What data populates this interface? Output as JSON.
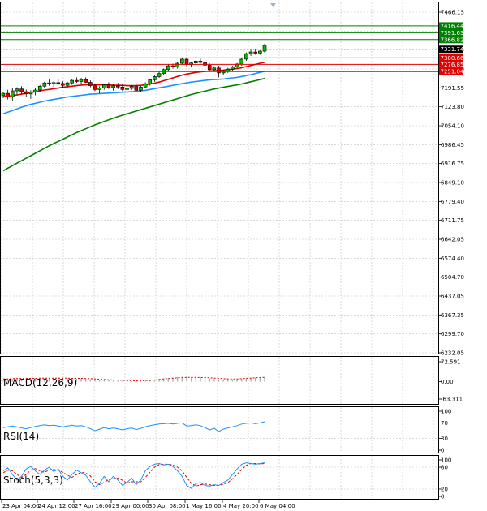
{
  "chart_data": {
    "type": "candlestick",
    "price_axis": {
      "ticks": [
        "7466.15",
        "7398.45",
        "7328.85",
        "7259.20",
        "7191.55",
        "7123.80",
        "7054.10",
        "6986.45",
        "6916.75",
        "6849.10",
        "6779.40",
        "6711.75",
        "6642.05",
        "6574.40",
        "6504.70",
        "6437.05",
        "6367.35",
        "6299.70",
        "6232.05"
      ],
      "ylim": [
        6232.05,
        7466.15
      ]
    },
    "time_axis": {
      "labels": [
        "23 Apr 04:00",
        "24 Apr 12:00",
        "27 Apr 16:00",
        "29 Apr 00:00",
        "30 Apr 08:00",
        "1 May 16:00",
        "4 May 20:00",
        "6 May 04:00"
      ]
    },
    "levels": [
      {
        "value": 7416.44,
        "label": "7416.44",
        "color": "#008000"
      },
      {
        "value": 7391.63,
        "label": "7391.63",
        "color": "#008000"
      },
      {
        "value": 7366.82,
        "label": "7366.82",
        "color": "#008000"
      },
      {
        "value": 7331.74,
        "label": "7331.74",
        "color": "#000000"
      },
      {
        "value": 7300.66,
        "label": "7300.66",
        "color": "#e00000"
      },
      {
        "value": 7276.85,
        "label": "7276.85",
        "color": "#e00000"
      },
      {
        "value": 7251.04,
        "label": "7251.04",
        "color": "#e00000"
      }
    ],
    "candles": [
      [
        7164,
        7178,
        7155,
        7172
      ],
      [
        7172,
        7185,
        7150,
        7160
      ],
      [
        7160,
        7190,
        7145,
        7181
      ],
      [
        7181,
        7194,
        7168,
        7188
      ],
      [
        7188,
        7198,
        7170,
        7178
      ],
      [
        7178,
        7186,
        7160,
        7170
      ],
      [
        7170,
        7183,
        7152,
        7176
      ],
      [
        7176,
        7190,
        7165,
        7184
      ],
      [
        7184,
        7202,
        7176,
        7198
      ],
      [
        7198,
        7214,
        7190,
        7210
      ],
      [
        7210,
        7222,
        7200,
        7206
      ],
      [
        7206,
        7215,
        7195,
        7211
      ],
      [
        7211,
        7224,
        7202,
        7208
      ],
      [
        7208,
        7216,
        7193,
        7201
      ],
      [
        7201,
        7214,
        7194,
        7210
      ],
      [
        7210,
        7225,
        7203,
        7219
      ],
      [
        7219,
        7230,
        7210,
        7215
      ],
      [
        7215,
        7228,
        7205,
        7222
      ],
      [
        7222,
        7230,
        7210,
        7212
      ],
      [
        7212,
        7219,
        7194,
        7200
      ],
      [
        7200,
        7208,
        7180,
        7186
      ],
      [
        7186,
        7198,
        7172,
        7192
      ],
      [
        7192,
        7208,
        7185,
        7203
      ],
      [
        7203,
        7212,
        7188,
        7193
      ],
      [
        7193,
        7205,
        7182,
        7199
      ],
      [
        7199,
        7210,
        7188,
        7195
      ],
      [
        7195,
        7206,
        7180,
        7186
      ],
      [
        7186,
        7196,
        7175,
        7190
      ],
      [
        7190,
        7202,
        7184,
        7197
      ],
      [
        7197,
        7208,
        7178,
        7183
      ],
      [
        7183,
        7200,
        7176,
        7195
      ],
      [
        7195,
        7212,
        7190,
        7207
      ],
      [
        7207,
        7224,
        7200,
        7221
      ],
      [
        7221,
        7238,
        7214,
        7233
      ],
      [
        7233,
        7250,
        7228,
        7244
      ],
      [
        7244,
        7262,
        7238,
        7258
      ],
      [
        7258,
        7276,
        7250,
        7272
      ],
      [
        7272,
        7280,
        7262,
        7268
      ],
      [
        7268,
        7285,
        7262,
        7281
      ],
      [
        7281,
        7300,
        7276,
        7296
      ],
      [
        7296,
        7302,
        7270,
        7276
      ],
      [
        7276,
        7286,
        7266,
        7282
      ],
      [
        7282,
        7294,
        7274,
        7289
      ],
      [
        7289,
        7298,
        7280,
        7284
      ],
      [
        7284,
        7290,
        7270,
        7274
      ],
      [
        7274,
        7280,
        7250,
        7258
      ],
      [
        7258,
        7270,
        7252,
        7264
      ],
      [
        7264,
        7272,
        7230,
        7246
      ],
      [
        7246,
        7258,
        7238,
        7254
      ],
      [
        7254,
        7264,
        7246,
        7260
      ],
      [
        7260,
        7272,
        7254,
        7268
      ],
      [
        7268,
        7282,
        7262,
        7278
      ],
      [
        7278,
        7300,
        7272,
        7296
      ],
      [
        7296,
        7320,
        7290,
        7316
      ],
      [
        7316,
        7330,
        7308,
        7322
      ],
      [
        7322,
        7333,
        7312,
        7318
      ],
      [
        7318,
        7328,
        7312,
        7325
      ],
      [
        7325,
        7352,
        7320,
        7346
      ]
    ],
    "ma_red": [
      7160,
      7162,
      7164,
      7166,
      7169,
      7172,
      7175,
      7178,
      7181,
      7184,
      7186,
      7189,
      7191,
      7194,
      7196,
      7198,
      7200,
      7202,
      7203,
      7204,
      7204,
      7203,
      7203,
      7202,
      7202,
      7201,
      7201,
      7200,
      7200,
      7200,
      7201,
      7203,
      7206,
      7209,
      7213,
      7218,
      7223,
      7228,
      7233,
      7238,
      7242,
      7245,
      7248,
      7250,
      7252,
      7253,
      7254,
      7255,
      7256,
      7258,
      7260,
      7262,
      7265,
      7269,
      7273,
      7277,
      7281,
      7285
    ],
    "ma_blue": [
      7098,
      7104,
      7110,
      7116,
      7122,
      7127,
      7132,
      7136,
      7140,
      7144,
      7147,
      7150,
      7153,
      7156,
      7159,
      7161,
      7163,
      7165,
      7167,
      7169,
      7170,
      7171,
      7172,
      7173,
      7174,
      7175,
      7176,
      7177,
      7178,
      7179,
      7181,
      7183,
      7186,
      7189,
      7192,
      7195,
      7198,
      7201,
      7204,
      7207,
      7210,
      7213,
      7215,
      7217,
      7219,
      7221,
      7222,
      7223,
      7224,
      7226,
      7228,
      7230,
      7233,
      7236,
      7240,
      7244,
      7248,
      7252
    ],
    "ma_green": [
      6892,
      6901,
      6910,
      6919,
      6928,
      6937,
      6946,
      6955,
      6964,
      6973,
      6982,
      6990,
      6998,
      7006,
      7014,
      7022,
      7030,
      7037,
      7044,
      7051,
      7058,
      7064,
      7070,
      7076,
      7082,
      7088,
      7093,
      7098,
      7103,
      7108,
      7113,
      7118,
      7123,
      7128,
      7133,
      7138,
      7143,
      7148,
      7153,
      7158,
      7163,
      7168,
      7172,
      7176,
      7180,
      7184,
      7188,
      7191,
      7194,
      7197,
      7200,
      7203,
      7206,
      7210,
      7214,
      7218,
      7222,
      7226
    ],
    "macd": {
      "label": "MACD(12,26,9)",
      "ticks": [
        "72.591",
        "0.00",
        "-63.311"
      ],
      "range": [
        -63.311,
        72.591
      ],
      "histogram": [
        8,
        9,
        10,
        10,
        11,
        11,
        11,
        12,
        12,
        13,
        13,
        13,
        13,
        12,
        12,
        12,
        11,
        11,
        10,
        9,
        8,
        7,
        6,
        5,
        5,
        4,
        3,
        3,
        2,
        2,
        3,
        4,
        6,
        8,
        10,
        12,
        14,
        15,
        17,
        18,
        18,
        17,
        16,
        15,
        14,
        12,
        10,
        9,
        8,
        8,
        9,
        10,
        11,
        13,
        14,
        15,
        16,
        17
      ],
      "signal": [
        10,
        10,
        11,
        11,
        11,
        12,
        12,
        12,
        13,
        13,
        13,
        13,
        13,
        13,
        13,
        12,
        12,
        12,
        11,
        11,
        10,
        9,
        8,
        7,
        6,
        6,
        5,
        4,
        4,
        3,
        3,
        4,
        5,
        6,
        8,
        10,
        11,
        13,
        14,
        15,
        16,
        16,
        16,
        15,
        15,
        14,
        13,
        12,
        11,
        10,
        10,
        10,
        11,
        12,
        13,
        14,
        15,
        16
      ]
    },
    "rsi": {
      "label": "RSI(14)",
      "ticks": [
        "100",
        "70",
        "30",
        "0"
      ],
      "values": [
        58,
        60,
        62,
        60,
        57,
        55,
        58,
        61,
        63,
        65,
        63,
        64,
        62,
        60,
        62,
        64,
        62,
        63,
        60,
        55,
        50,
        54,
        58,
        55,
        57,
        55,
        52,
        55,
        57,
        53,
        56,
        60,
        63,
        65,
        67,
        68,
        69,
        67,
        69,
        70,
        62,
        63,
        65,
        63,
        58,
        52,
        56,
        48,
        54,
        57,
        60,
        63,
        67,
        69,
        70,
        68,
        70,
        73
      ]
    },
    "stoch": {
      "label": "Stoch(5,3,3)",
      "ticks": [
        "100",
        "80",
        "20",
        "0"
      ],
      "k": [
        70,
        78,
        60,
        45,
        55,
        75,
        82,
        70,
        60,
        72,
        80,
        68,
        75,
        55,
        45,
        60,
        72,
        65,
        58,
        40,
        25,
        35,
        55,
        40,
        55,
        45,
        30,
        38,
        50,
        32,
        45,
        70,
        82,
        88,
        90,
        86,
        88,
        82,
        70,
        55,
        30,
        22,
        35,
        38,
        30,
        28,
        32,
        30,
        38,
        45,
        60,
        75,
        88,
        92,
        90,
        88,
        90,
        92
      ],
      "d": [
        65,
        72,
        70,
        60,
        52,
        60,
        72,
        76,
        70,
        66,
        72,
        74,
        72,
        66,
        58,
        52,
        60,
        66,
        64,
        56,
        40,
        32,
        38,
        46,
        48,
        50,
        44,
        36,
        40,
        40,
        40,
        52,
        66,
        80,
        87,
        88,
        88,
        86,
        80,
        70,
        52,
        36,
        28,
        32,
        34,
        32,
        30,
        30,
        33,
        38,
        48,
        60,
        74,
        85,
        90,
        90,
        89,
        90
      ]
    }
  }
}
